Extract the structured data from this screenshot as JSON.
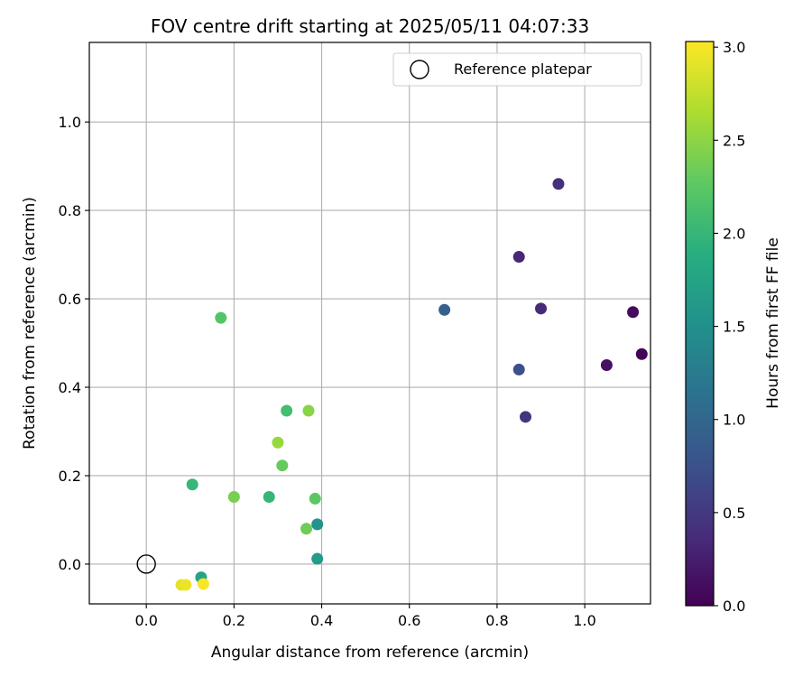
{
  "chart_data": {
    "type": "scatter",
    "title": "FOV centre drift starting at 2025/05/11 04:07:33",
    "xlabel": "Angular distance from reference (arcmin)",
    "ylabel": "Rotation from reference (arcmin)",
    "xlim": [
      -0.13,
      1.15
    ],
    "ylim": [
      -0.09,
      1.18
    ],
    "x_ticks": [
      0.0,
      0.2,
      0.4,
      0.6,
      0.8,
      1.0
    ],
    "y_ticks": [
      0.0,
      0.2,
      0.4,
      0.6,
      0.8,
      1.0
    ],
    "grid": true,
    "legend": {
      "placement": "upper-right",
      "entries": [
        "Reference platepar"
      ]
    },
    "reference_point": {
      "x": 0.0,
      "y": 0.0,
      "label": "Reference platepar"
    },
    "colorbar": {
      "label": "Hours from first FF file",
      "colormap": "viridis",
      "range": [
        0.0,
        3.03
      ],
      "ticks": [
        0.0,
        0.5,
        1.0,
        1.5,
        2.0,
        2.5,
        3.0
      ]
    },
    "points": [
      {
        "x": 1.13,
        "y": 0.475,
        "hours": 0.02
      },
      {
        "x": 1.11,
        "y": 0.57,
        "hours": 0.08
      },
      {
        "x": 1.05,
        "y": 0.45,
        "hours": 0.13
      },
      {
        "x": 0.94,
        "y": 0.86,
        "hours": 0.4
      },
      {
        "x": 0.85,
        "y": 0.695,
        "hours": 0.33
      },
      {
        "x": 0.9,
        "y": 0.578,
        "hours": 0.36
      },
      {
        "x": 0.865,
        "y": 0.333,
        "hours": 0.45
      },
      {
        "x": 0.85,
        "y": 0.44,
        "hours": 0.75
      },
      {
        "x": 0.68,
        "y": 0.575,
        "hours": 0.92
      },
      {
        "x": 0.39,
        "y": 0.09,
        "hours": 1.55
      },
      {
        "x": 0.39,
        "y": 0.012,
        "hours": 1.65
      },
      {
        "x": 0.125,
        "y": -0.03,
        "hours": 1.75
      },
      {
        "x": 0.105,
        "y": 0.18,
        "hours": 2.0
      },
      {
        "x": 0.28,
        "y": 0.152,
        "hours": 2.0
      },
      {
        "x": 0.32,
        "y": 0.347,
        "hours": 2.1
      },
      {
        "x": 0.17,
        "y": 0.557,
        "hours": 2.2
      },
      {
        "x": 0.385,
        "y": 0.148,
        "hours": 2.25
      },
      {
        "x": 0.31,
        "y": 0.223,
        "hours": 2.3
      },
      {
        "x": 0.365,
        "y": 0.08,
        "hours": 2.35
      },
      {
        "x": 0.2,
        "y": 0.152,
        "hours": 2.4
      },
      {
        "x": 0.37,
        "y": 0.347,
        "hours": 2.48
      },
      {
        "x": 0.3,
        "y": 0.275,
        "hours": 2.55
      },
      {
        "x": 0.08,
        "y": -0.047,
        "hours": 2.9
      },
      {
        "x": 0.09,
        "y": -0.047,
        "hours": 2.95
      },
      {
        "x": 0.13,
        "y": -0.045,
        "hours": 3.0
      }
    ]
  }
}
